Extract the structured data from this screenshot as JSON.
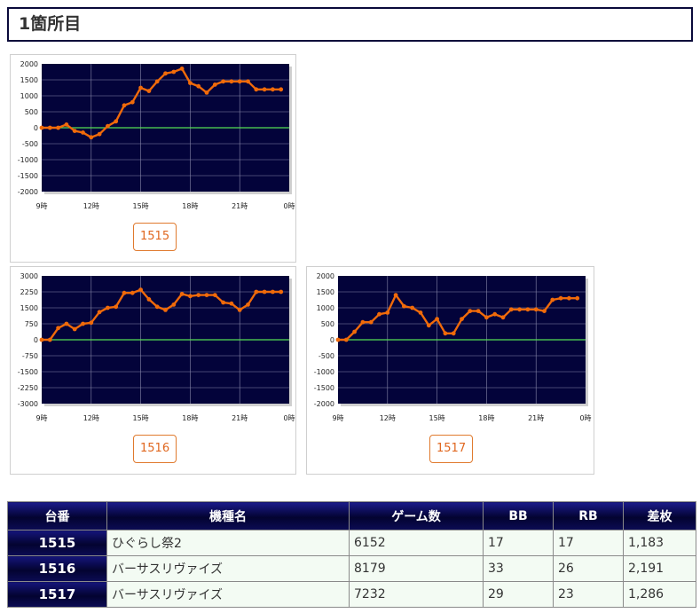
{
  "section_title": "1箇所目",
  "colors": {
    "plot_bg": "#03033a",
    "line": "#f06a0a",
    "zero_line": "#55dd55",
    "grid": "#8888aa",
    "accent": "#e0671f"
  },
  "chart_data": [
    {
      "type": "line",
      "unit": "1515",
      "x_ticks": [
        "9時",
        "12時",
        "15時",
        "18時",
        "21時",
        "0時"
      ],
      "x_range": [
        9,
        24
      ],
      "ylim": [
        -2000,
        2000
      ],
      "y_ticks": [
        "2000",
        "1500",
        "1000",
        "500",
        "0",
        "-500",
        "-1000",
        "-1500",
        "-2000"
      ],
      "x": [
        9,
        9.5,
        10,
        10.5,
        11,
        11.5,
        12,
        12.5,
        13,
        13.5,
        14,
        14.5,
        15,
        15.5,
        16,
        16.5,
        17,
        17.5,
        18,
        18.5,
        19,
        19.5,
        20,
        20.5,
        21,
        21.5,
        22,
        22.5,
        23,
        23.5
      ],
      "values": [
        0,
        0,
        0,
        100,
        -100,
        -150,
        -300,
        -200,
        50,
        200,
        700,
        800,
        1250,
        1150,
        1450,
        1700,
        1750,
        1850,
        1400,
        1300,
        1100,
        1350,
        1450,
        1450,
        1450,
        1450,
        1200,
        1200,
        1200,
        1200
      ]
    },
    {
      "type": "line",
      "unit": "1516",
      "x_ticks": [
        "9時",
        "12時",
        "15時",
        "18時",
        "21時",
        "0時"
      ],
      "x_range": [
        9,
        24
      ],
      "ylim": [
        -3000,
        3000
      ],
      "y_ticks": [
        "3000",
        "2250",
        "1500",
        "750",
        "0",
        "-750",
        "-1500",
        "-2250",
        "-3000"
      ],
      "x": [
        9,
        9.5,
        10,
        10.5,
        11,
        11.5,
        12,
        12.5,
        13,
        13.5,
        14,
        14.5,
        15,
        15.5,
        16,
        16.5,
        17,
        17.5,
        18,
        18.5,
        19,
        19.5,
        20,
        20.5,
        21,
        21.5,
        22,
        22.5,
        23,
        23.5
      ],
      "values": [
        0,
        0,
        550,
        750,
        500,
        750,
        800,
        1300,
        1500,
        1550,
        2200,
        2200,
        2350,
        1900,
        1550,
        1400,
        1650,
        2150,
        2050,
        2100,
        2100,
        2100,
        1750,
        1700,
        1400,
        1650,
        2250,
        2250,
        2250,
        2250
      ]
    },
    {
      "type": "line",
      "unit": "1517",
      "x_ticks": [
        "9時",
        "12時",
        "15時",
        "18時",
        "21時",
        "0時"
      ],
      "x_range": [
        9,
        24
      ],
      "ylim": [
        -2000,
        2000
      ],
      "y_ticks": [
        "2000",
        "1500",
        "1000",
        "500",
        "0",
        "-500",
        "-1000",
        "-1500",
        "-2000"
      ],
      "x": [
        9,
        9.5,
        10,
        10.5,
        11,
        11.5,
        12,
        12.5,
        13,
        13.5,
        14,
        14.5,
        15,
        15.5,
        16,
        16.5,
        17,
        17.5,
        18,
        18.5,
        19,
        19.5,
        20,
        20.5,
        21,
        21.5,
        22,
        22.5,
        23,
        23.5
      ],
      "values": [
        0,
        0,
        250,
        550,
        550,
        800,
        850,
        1400,
        1050,
        1000,
        850,
        450,
        650,
        200,
        200,
        650,
        900,
        900,
        700,
        800,
        700,
        950,
        950,
        950,
        950,
        900,
        1250,
        1300,
        1300,
        1300
      ]
    }
  ],
  "table": {
    "headers": [
      "台番",
      "機種名",
      "ゲーム数",
      "BB",
      "RB",
      "差枚"
    ],
    "rows": [
      {
        "unit": "1515",
        "model": "ひぐらし祭2",
        "games": "6152",
        "bb": "17",
        "rb": "17",
        "diff": "1,183"
      },
      {
        "unit": "1516",
        "model": "バーサスリヴァイズ",
        "games": "8179",
        "bb": "33",
        "rb": "26",
        "diff": "2,191"
      },
      {
        "unit": "1517",
        "model": "バーサスリヴァイズ",
        "games": "7232",
        "bb": "29",
        "rb": "23",
        "diff": "1,286"
      }
    ]
  }
}
